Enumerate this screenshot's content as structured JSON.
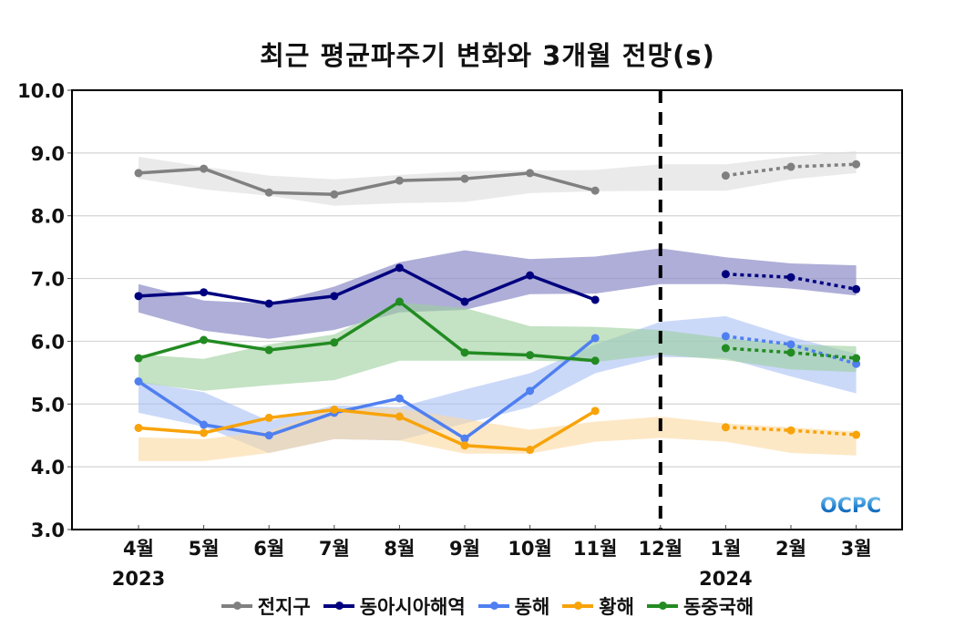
{
  "chart_data": {
    "type": "line",
    "title": "최근 평균파주기 변화와 3개월 전망(s)",
    "xlabel": "",
    "ylabel": "",
    "ylim": [
      3.0,
      10.0
    ],
    "yticks": [
      "3.0",
      "4.0",
      "5.0",
      "6.0",
      "7.0",
      "8.0",
      "9.0",
      "10.0"
    ],
    "categories": [
      "4월",
      "5월",
      "6월",
      "7월",
      "8월",
      "9월",
      "10월",
      "11월",
      "12월",
      "1월",
      "2월",
      "3월"
    ],
    "year_labels": [
      {
        "label": "2023",
        "under": "4월"
      },
      {
        "label": "2024",
        "under": "1월"
      }
    ],
    "divider_at": "12월",
    "grid": true,
    "legend_position": "bottom",
    "logo": "OCPC",
    "series": [
      {
        "name": "전지구",
        "color": "#808080",
        "band_color": "#dcdcdc",
        "observed": [
          8.68,
          8.75,
          8.37,
          8.34,
          8.56,
          8.59,
          8.68,
          8.4,
          null,
          null,
          null,
          null
        ],
        "forecast": [
          null,
          null,
          null,
          null,
          null,
          null,
          null,
          null,
          null,
          8.64,
          8.78,
          8.82
        ],
        "band_upper": [
          8.94,
          8.78,
          8.64,
          8.58,
          8.65,
          8.71,
          8.72,
          8.73,
          8.82,
          8.82,
          8.94,
          9.03
        ],
        "band_lower": [
          8.59,
          8.42,
          8.32,
          8.16,
          8.2,
          8.22,
          8.36,
          8.39,
          8.4,
          8.4,
          8.58,
          8.68
        ]
      },
      {
        "name": "동아시아해역",
        "color": "#00007f",
        "band_color": "#8c8cc8",
        "observed": [
          6.72,
          6.78,
          6.6,
          6.72,
          7.17,
          6.63,
          7.05,
          6.66,
          null,
          null,
          null,
          null
        ],
        "forecast": [
          null,
          null,
          null,
          null,
          null,
          null,
          null,
          null,
          null,
          7.07,
          7.02,
          6.83
        ],
        "band_upper": [
          6.91,
          6.65,
          6.6,
          6.87,
          7.26,
          7.45,
          7.31,
          7.35,
          7.48,
          7.34,
          7.24,
          7.21
        ],
        "band_lower": [
          6.46,
          6.17,
          6.04,
          6.18,
          6.46,
          6.5,
          6.75,
          6.76,
          6.91,
          6.91,
          6.84,
          6.73
        ]
      },
      {
        "name": "동해",
        "color": "#4f7ff0",
        "band_color": "#a9bff5",
        "observed": [
          5.36,
          4.67,
          4.5,
          4.86,
          5.09,
          4.45,
          5.21,
          6.05,
          null,
          null,
          null,
          null
        ],
        "forecast": [
          null,
          null,
          null,
          null,
          null,
          null,
          null,
          null,
          null,
          6.08,
          5.95,
          5.64
        ],
        "band_upper": [
          5.36,
          5.19,
          4.73,
          4.98,
          4.95,
          5.23,
          5.49,
          5.95,
          6.31,
          6.4,
          6.07,
          5.8
        ],
        "band_lower": [
          4.86,
          4.64,
          4.22,
          4.44,
          4.42,
          4.69,
          4.95,
          5.49,
          5.75,
          5.73,
          5.44,
          5.17
        ]
      },
      {
        "name": "황해",
        "color": "#f8a30a",
        "band_color": "#fbd9a0",
        "observed": [
          4.62,
          4.54,
          4.78,
          4.91,
          4.8,
          4.34,
          4.27,
          4.89,
          null,
          null,
          null,
          null
        ],
        "forecast": [
          null,
          null,
          null,
          null,
          null,
          null,
          null,
          null,
          null,
          4.63,
          4.58,
          4.51
        ],
        "band_upper": [
          4.47,
          4.44,
          4.57,
          4.93,
          4.93,
          4.76,
          4.59,
          4.72,
          4.8,
          4.69,
          4.63,
          4.56
        ],
        "band_lower": [
          4.09,
          4.09,
          4.22,
          4.44,
          4.42,
          4.21,
          4.21,
          4.4,
          4.46,
          4.4,
          4.22,
          4.18
        ]
      },
      {
        "name": "동중국해",
        "color": "#228b22",
        "band_color": "#9ccf9c",
        "observed": [
          5.73,
          6.02,
          5.86,
          5.98,
          6.63,
          5.82,
          5.78,
          5.69,
          null,
          null,
          null,
          null
        ],
        "forecast": [
          null,
          null,
          null,
          null,
          null,
          null,
          null,
          null,
          null,
          5.89,
          5.82,
          5.73
        ],
        "band_upper": [
          5.79,
          5.72,
          5.95,
          6.11,
          6.62,
          6.53,
          6.24,
          6.23,
          6.18,
          6.05,
          5.95,
          5.92
        ],
        "band_lower": [
          5.34,
          5.21,
          5.3,
          5.38,
          5.69,
          5.69,
          5.69,
          5.67,
          5.79,
          5.7,
          5.55,
          5.51
        ]
      }
    ]
  }
}
